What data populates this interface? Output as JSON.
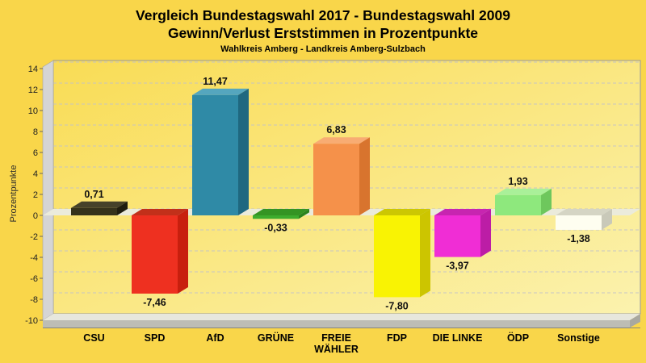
{
  "header": {
    "title_line1": "Vergleich Bundestagswahl 2017 - Bundestagswahl 2009",
    "title_line2": "Gewinn/Verlust Erststimmen in Prozentpunkte",
    "subtitle": "Wahlkreis Amberg - Landkreis Amberg-Sulzbach"
  },
  "colors": {
    "background": "#F9D64A",
    "plot_gradient_start": "#F9DC55",
    "plot_gradient_end": "#FBF2AE",
    "plot_border": "#98989E",
    "left_wall": "#D5D5D5",
    "floor_top": "#E7E7DD",
    "floor_front": "#BDBDB5",
    "floor_bevel": "#A8A8A0",
    "floor_bottom_line": "#85857D",
    "zero_strip": "#EBEBDB",
    "grid": "#C2C2CA",
    "tick_text": "#222222",
    "value_text": "#111111",
    "category_text": "#000000"
  },
  "chart_data": {
    "type": "bar",
    "style": "3d-bars",
    "title": "Vergleich Bundestagswahl 2017 - Bundestagswahl 2009",
    "subtitle": "Gewinn/Verlust Erststimmen in Prozentpunkte",
    "region_caption": "Wahlkreis Amberg - Landkreis Amberg-Sulzbach",
    "xlabel": "",
    "ylabel": "Prozentpunkte",
    "ylim": [
      -10,
      14.2
    ],
    "ytick_step": 2,
    "yticks": [
      14,
      12,
      10,
      8,
      6,
      4,
      2,
      0,
      -2,
      -4,
      -6,
      -8,
      -10
    ],
    "grid": true,
    "legend_position": "none",
    "categories": [
      "CSU",
      "SPD",
      "AfD",
      "GRÜNE",
      "FREIE WÄHLER",
      "FDP",
      "DIE LINKE",
      "ÖDP",
      "Sonstige"
    ],
    "category_label_lines": [
      [
        "CSU"
      ],
      [
        "SPD"
      ],
      [
        "AfD"
      ],
      [
        "GRÜNE"
      ],
      [
        "FREIE",
        "WÄHLER"
      ],
      [
        "FDP"
      ],
      [
        "DIE LINKE"
      ],
      [
        "ÖDP"
      ],
      [
        "Sonstige"
      ]
    ],
    "values": [
      0.71,
      -7.46,
      11.47,
      -0.33,
      6.83,
      -7.8,
      -3.97,
      1.93,
      -1.38
    ],
    "value_labels": [
      "0,71",
      "-7,46",
      "11,47",
      "-0,33",
      "6,83",
      "-7,80",
      "-3,97",
      "1,93",
      "-1,38"
    ],
    "bar_colors": [
      {
        "party": "CSU",
        "front": "#35321B",
        "top": "#46422A",
        "side": "#1F1D0F"
      },
      {
        "party": "SPD",
        "front": "#EE3020",
        "top": "#C2301A",
        "side": "#C81F0E"
      },
      {
        "party": "AfD",
        "front": "#2F8AA6",
        "top": "#55A6BE",
        "side": "#1F6880"
      },
      {
        "party": "GRÜNE",
        "front": "#3DAC2E",
        "top": "#349423",
        "side": "#2B841E"
      },
      {
        "party": "FREIE WÄHLER",
        "front": "#F5914A",
        "top": "#F8AC73",
        "side": "#D8742E"
      },
      {
        "party": "FDP",
        "front": "#F9F303",
        "top": "#CCC702",
        "side": "#CCC500"
      },
      {
        "party": "DIE LINKE",
        "front": "#F02DD5",
        "top": "#C725B0",
        "side": "#BC1DA6"
      },
      {
        "party": "ÖDP",
        "front": "#8EE87D",
        "top": "#A9F099",
        "side": "#6EC75D"
      },
      {
        "party": "Sonstige",
        "front": "#FEFEF0",
        "top": "#D5D5C4",
        "side": "#C9C9B9"
      }
    ]
  }
}
